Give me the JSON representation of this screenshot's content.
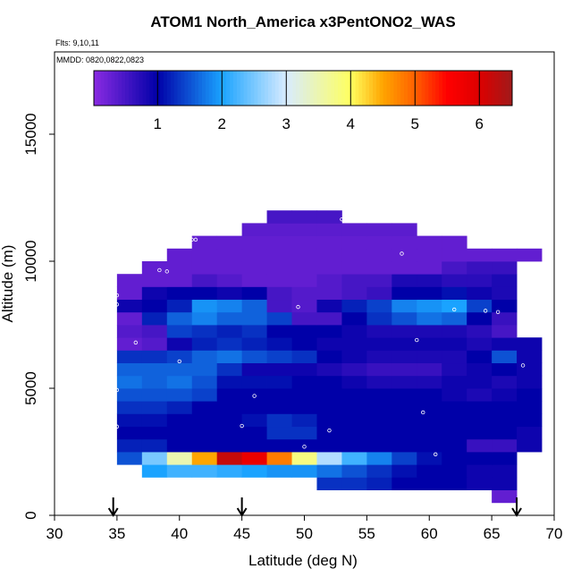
{
  "chart_data": {
    "type": "heatmap",
    "title": "ATOM1 North_America x3PentONO2_WAS",
    "subtitle": "Flts: 9,10,11",
    "annotation": "MMDD: 0820,0822,0823",
    "x_label": "Latitude (deg N)",
    "y_label": "Altitude (m)",
    "xlim": [
      30,
      70
    ],
    "ylim": [
      0,
      18240
    ],
    "xticks": [
      30,
      35,
      40,
      45,
      50,
      55,
      60,
      65,
      70
    ],
    "yticks": [
      0,
      5000,
      10000,
      15000
    ],
    "xbins": [
      35,
      37,
      39,
      41,
      43,
      45,
      47,
      49,
      51,
      53,
      55,
      57,
      59,
      61,
      63,
      65,
      67,
      69
    ],
    "ybins": [
      500,
      1000,
      1500,
      2000,
      2500,
      3000,
      3500,
      4000,
      4500,
      5000,
      5500,
      6000,
      6500,
      7000,
      7500,
      8000,
      8500,
      9000,
      9500,
      10000,
      10500,
      11000,
      11500,
      12000
    ],
    "z": [
      [
        null,
        null,
        null,
        null,
        null,
        null,
        null,
        null,
        null,
        null,
        null,
        null,
        null,
        null,
        null,
        0.3,
        null
      ],
      [
        null,
        null,
        null,
        null,
        null,
        null,
        null,
        null,
        1.3,
        1.3,
        1.2,
        1.0,
        1.0,
        1.0,
        0.9,
        0.9,
        null
      ],
      [
        null,
        2.0,
        2.2,
        2.2,
        2.1,
        2.0,
        1.9,
        1.9,
        1.7,
        1.5,
        1.3,
        1.1,
        1.0,
        1.0,
        0.9,
        0.9,
        null
      ],
      [
        1.5,
        2.5,
        3.5,
        4.5,
        6.2,
        5.8,
        4.8,
        3.8,
        2.8,
        2.2,
        1.8,
        1.4,
        1.1,
        1.0,
        1.0,
        1.0,
        null
      ],
      [
        1.2,
        1.2,
        1.0,
        1.0,
        1.0,
        1.0,
        1.0,
        1.0,
        1.0,
        1.0,
        1.0,
        1.0,
        1.0,
        1.0,
        0.6,
        0.6,
        0.9
      ],
      [
        1.0,
        1.0,
        1.0,
        1.0,
        1.0,
        1.0,
        1.3,
        1.3,
        1.0,
        1.0,
        1.0,
        1.0,
        1.0,
        1.0,
        1.0,
        1.0,
        0.9
      ],
      [
        1.1,
        1.1,
        1.0,
        1.0,
        1.0,
        1.1,
        1.3,
        1.2,
        1.0,
        1.0,
        1.0,
        1.0,
        1.0,
        1.0,
        1.0,
        1.0,
        1.0
      ],
      [
        1.3,
        1.3,
        1.2,
        1.0,
        1.0,
        1.0,
        1.0,
        1.0,
        1.0,
        1.0,
        1.0,
        1.0,
        1.0,
        1.0,
        1.0,
        1.0,
        1.0
      ],
      [
        1.5,
        1.5,
        1.5,
        1.4,
        1.0,
        1.0,
        1.0,
        1.0,
        1.0,
        1.0,
        1.0,
        1.0,
        1.0,
        0.9,
        0.8,
        0.9,
        1.0
      ],
      [
        1.7,
        1.6,
        1.7,
        1.5,
        1.1,
        1.1,
        1.1,
        1.0,
        1.0,
        0.9,
        0.8,
        0.8,
        0.8,
        0.9,
        0.9,
        0.8,
        0.9
      ],
      [
        1.6,
        1.6,
        1.6,
        1.6,
        1.3,
        0.9,
        0.9,
        0.9,
        0.8,
        0.7,
        0.6,
        0.6,
        0.6,
        0.8,
        0.9,
        1.0,
        0.9
      ],
      [
        1.3,
        1.3,
        1.4,
        1.6,
        1.7,
        1.5,
        1.4,
        1.3,
        1.0,
        0.9,
        0.8,
        0.8,
        0.8,
        0.8,
        1.0,
        1.5,
        0.9
      ],
      [
        0.3,
        0.4,
        0.9,
        1.2,
        1.3,
        1.2,
        1.1,
        1.0,
        0.9,
        0.9,
        0.9,
        0.9,
        0.9,
        0.9,
        0.8,
        0.9,
        0.9
      ],
      [
        0.4,
        0.5,
        1.4,
        1.3,
        1.2,
        1.3,
        1.0,
        1.0,
        1.0,
        0.9,
        0.8,
        0.8,
        0.8,
        0.8,
        0.7,
        0.5,
        null
      ],
      [
        0.3,
        1.2,
        1.6,
        1.8,
        1.6,
        1.6,
        1.4,
        0.5,
        0.5,
        1.0,
        1.3,
        1.5,
        1.7,
        1.6,
        1.0,
        0.6,
        null
      ],
      [
        0.9,
        1.0,
        1.2,
        1.9,
        1.8,
        1.6,
        0.5,
        0.4,
        0.9,
        1.2,
        1.4,
        1.8,
        1.9,
        2.0,
        1.4,
        1.0,
        null
      ],
      [
        0.3,
        0.9,
        1.0,
        1.0,
        0.9,
        1.0,
        0.5,
        0.4,
        0.4,
        0.5,
        0.6,
        1.0,
        1.0,
        1.1,
        0.9,
        0.8,
        null
      ],
      [
        0.3,
        0.3,
        0.3,
        0.5,
        0.4,
        0.3,
        0.3,
        0.3,
        0.4,
        0.5,
        0.5,
        0.8,
        0.8,
        0.7,
        0.7,
        0.8,
        null
      ],
      [
        null,
        0.3,
        0.3,
        0.3,
        0.3,
        0.3,
        0.3,
        0.3,
        0.3,
        0.3,
        0.3,
        0.3,
        0.3,
        0.5,
        0.6,
        0.6,
        null
      ],
      [
        null,
        null,
        0.3,
        0.3,
        0.3,
        0.3,
        0.3,
        0.3,
        0.3,
        0.3,
        0.3,
        0.3,
        0.3,
        0.3,
        0.3,
        0.3,
        0.3
      ],
      [
        null,
        null,
        null,
        0.3,
        0.3,
        0.3,
        0.3,
        0.3,
        0.3,
        0.3,
        0.3,
        0.3,
        0.3,
        0.3,
        null,
        null,
        null
      ],
      [
        null,
        null,
        null,
        null,
        null,
        0.35,
        0.35,
        0.35,
        0.35,
        0.35,
        0.35,
        0.35,
        null,
        null,
        null,
        null,
        null
      ],
      [
        null,
        null,
        null,
        null,
        null,
        null,
        0.5,
        0.5,
        0.5,
        null,
        null,
        null,
        null,
        null,
        null,
        null,
        null
      ]
    ],
    "colorbar": {
      "range": [
        0.01,
        6.51
      ],
      "ticks": [
        1,
        2,
        3,
        4,
        5,
        6
      ],
      "stops": [
        0.01,
        1,
        2,
        3,
        4,
        4.5,
        5,
        5.5,
        6,
        6.51
      ],
      "colors": [
        "#8a2be2",
        "#0000a8",
        "#1aa3ff",
        "#d8ecff",
        "#ffff60",
        "#ffa500",
        "#ff6000",
        "#ff0000",
        "#dd0000",
        "#a01a1a"
      ]
    },
    "samples": {
      "lat": [
        35,
        35,
        36.5,
        38.4,
        39,
        41,
        41.3,
        45,
        46,
        49.5,
        50,
        52,
        53,
        57.8,
        59,
        59.5,
        60.5,
        62,
        64.5,
        65.5,
        67.5,
        69.2,
        35,
        35,
        40
      ],
      "alt": [
        8660,
        8300,
        6800,
        9650,
        9600,
        10850,
        10850,
        3520,
        4700,
        8200,
        2700,
        3340,
        11650,
        10300,
        6900,
        4050,
        2400,
        8100,
        8050,
        8000,
        5900,
        10350,
        4930,
        3490,
        6060
      ],
      "color": "#ffffff"
    },
    "arrows": [
      34.7,
      45,
      67
    ]
  }
}
